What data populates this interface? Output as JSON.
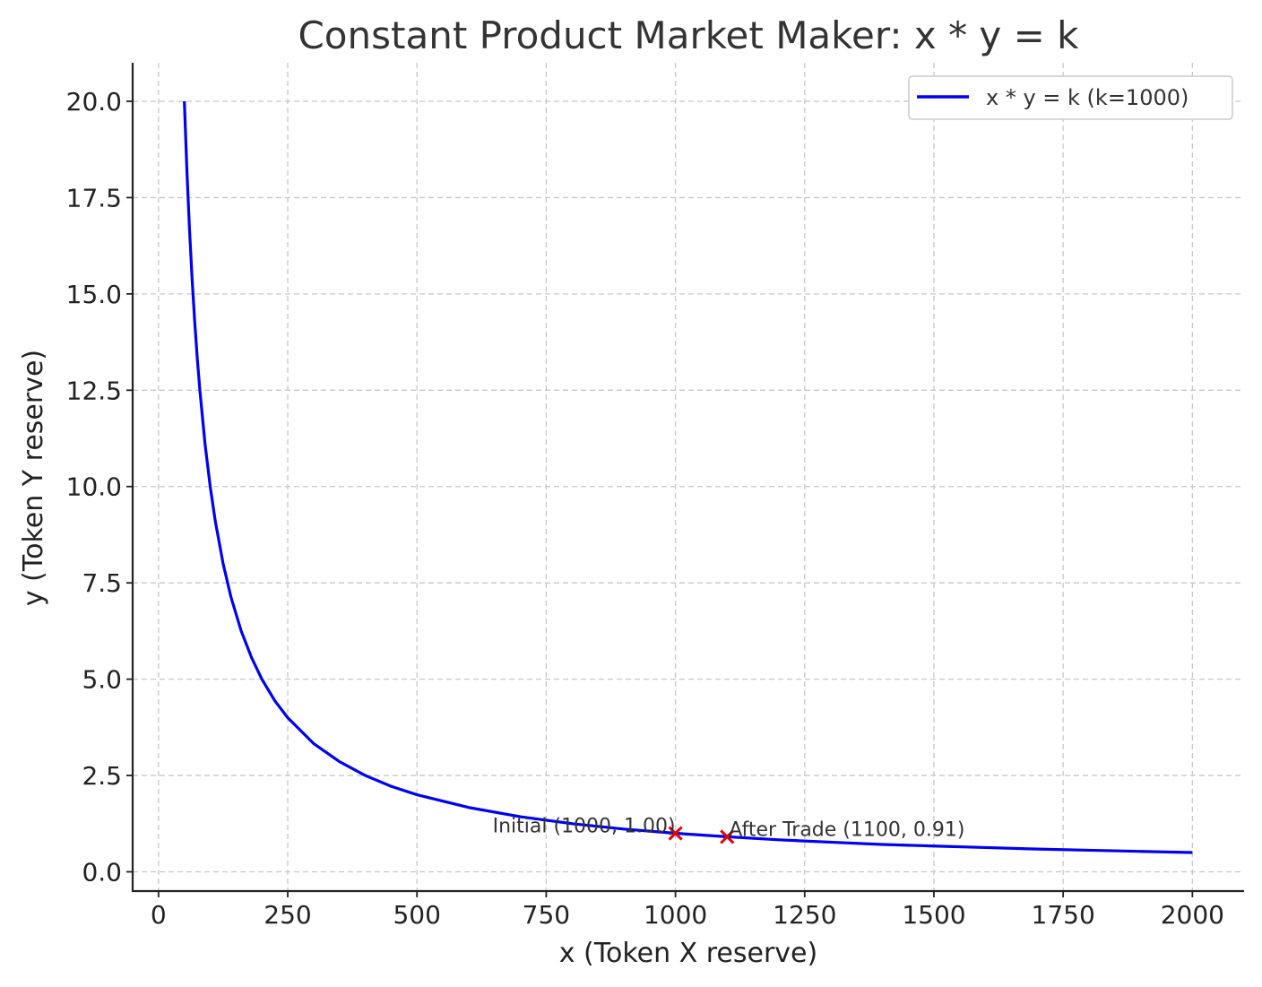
{
  "chart_data": {
    "type": "line",
    "title": "Constant Product Market Maker: x * y = k",
    "xlabel": "x (Token X reserve)",
    "ylabel": "y (Token Y reserve)",
    "xlim": [
      -50,
      2100
    ],
    "ylim": [
      -0.5,
      21
    ],
    "x_ticks": [
      0,
      250,
      500,
      750,
      1000,
      1250,
      1500,
      1750,
      2000
    ],
    "x_tick_labels": [
      "0",
      "250",
      "500",
      "750",
      "1000",
      "1250",
      "1500",
      "1750",
      "2000"
    ],
    "y_ticks": [
      0,
      2.5,
      5,
      7.5,
      10,
      12.5,
      15,
      17.5,
      20
    ],
    "y_tick_labels": [
      "0.0",
      "2.5",
      "5.0",
      "7.5",
      "10.0",
      "12.5",
      "15.0",
      "17.5",
      "20.0"
    ],
    "grid": true,
    "legend_position": "top-right",
    "series": [
      {
        "name": "x * y = k (k=1000)",
        "color": "#0000ee",
        "k": 1000,
        "x": [
          50,
          55,
          60,
          65,
          70,
          75,
          80,
          90,
          100,
          110,
          125,
          140,
          160,
          180,
          200,
          225,
          250,
          300,
          350,
          400,
          450,
          500,
          600,
          700,
          800,
          900,
          1000,
          1100,
          1200,
          1300,
          1400,
          1500,
          1600,
          1700,
          1800,
          1900,
          2000
        ],
        "y": [
          20.0,
          18.18,
          16.67,
          15.38,
          14.29,
          13.33,
          12.5,
          11.11,
          10.0,
          9.09,
          8.0,
          7.14,
          6.25,
          5.56,
          5.0,
          4.44,
          4.0,
          3.33,
          2.86,
          2.5,
          2.22,
          2.0,
          1.67,
          1.43,
          1.25,
          1.11,
          1.0,
          0.91,
          0.83,
          0.77,
          0.71,
          0.67,
          0.63,
          0.59,
          0.56,
          0.53,
          0.5
        ]
      }
    ],
    "points": [
      {
        "label": "Initial (1000, 1.00)",
        "x": 1000,
        "y": 1.0,
        "color": "#e00000",
        "marker": "x"
      },
      {
        "label": "After Trade (1100, 0.91)",
        "x": 1100,
        "y": 0.91,
        "color": "#e00000",
        "marker": "x"
      }
    ]
  }
}
